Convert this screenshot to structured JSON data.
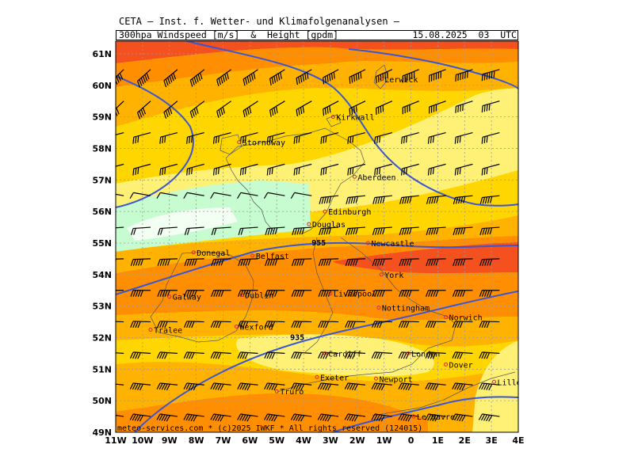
{
  "header": {
    "title": "CETA — Inst. f. Wetter- und Klimafolgenanalysen —",
    "parameter_prefix": "300hpa Windspeed",
    "unit_speed": "m/s",
    "amp": "&",
    "parameter_height": "Height",
    "unit_height": "gpdm",
    "valid_time": "15.08.2025  03  UTC"
  },
  "footer": {
    "credit": "meteo-services.com * (c)2025 IWKF * All rights reserved (124015)"
  },
  "map": {
    "lon_range": [
      -11,
      4
    ],
    "lat_range": [
      49,
      61.4
    ],
    "lon_ticks": [
      "11W",
      "10W",
      "9W",
      "8W",
      "7W",
      "6W",
      "5W",
      "4W",
      "3W",
      "2W",
      "1W",
      "0",
      "1E",
      "2E",
      "3E",
      "4E"
    ],
    "lat_ticks": [
      "49N",
      "50N",
      "51N",
      "52N",
      "53N",
      "54N",
      "55N",
      "56N",
      "57N",
      "58N",
      "59N",
      "60N",
      "61N"
    ],
    "grid": true,
    "colors": {
      "band_light": "#fff176",
      "band_yellow": "#ffd600",
      "band_gold": "#ffb300",
      "band_orange": "#ff8f00",
      "band_dark": "#f4511e",
      "band_calm_green": "#c6fccf",
      "band_calm_white": "#f2fff2",
      "contour": "#3a56d4",
      "grid_line": "#9a9a9a"
    },
    "contour_labels": [
      {
        "text": "955",
        "lon": -3.7,
        "lat": 55.0
      },
      {
        "text": "935",
        "lon": -4.5,
        "lat": 52.0
      }
    ],
    "cities": [
      {
        "name": "Lerwick",
        "lon": -1.1,
        "lat": 60.2
      },
      {
        "name": "Kirkwall",
        "lon": -2.9,
        "lat": 59.0
      },
      {
        "name": "Stornoway",
        "lon": -6.4,
        "lat": 58.2
      },
      {
        "name": "Aberdeen",
        "lon": -2.1,
        "lat": 57.1
      },
      {
        "name": "Edinburgh",
        "lon": -3.2,
        "lat": 56.0
      },
      {
        "name": "Douglas",
        "lon": -3.8,
        "lat": 55.6
      },
      {
        "name": "Newcastle",
        "lon": -1.6,
        "lat": 55.0
      },
      {
        "name": "Donegal",
        "lon": -8.1,
        "lat": 54.7
      },
      {
        "name": "Belfast",
        "lon": -5.9,
        "lat": 54.6
      },
      {
        "name": "York",
        "lon": -1.1,
        "lat": 54.0
      },
      {
        "name": "Liverpool",
        "lon": -3.0,
        "lat": 53.4
      },
      {
        "name": "Galway",
        "lon": -9.0,
        "lat": 53.3
      },
      {
        "name": "Dublin",
        "lon": -6.3,
        "lat": 53.35
      },
      {
        "name": "Nottingham",
        "lon": -1.2,
        "lat": 52.95
      },
      {
        "name": "Wexford",
        "lon": -6.5,
        "lat": 52.35
      },
      {
        "name": "Norwich",
        "lon": 1.3,
        "lat": 52.65
      },
      {
        "name": "Tralee",
        "lon": -9.7,
        "lat": 52.25
      },
      {
        "name": "Cardiff",
        "lon": -3.2,
        "lat": 51.5
      },
      {
        "name": "London",
        "lon": -0.1,
        "lat": 51.5
      },
      {
        "name": "Dover",
        "lon": 1.3,
        "lat": 51.15
      },
      {
        "name": "Exeter",
        "lon": -3.5,
        "lat": 50.75
      },
      {
        "name": "Newport",
        "lon": -1.3,
        "lat": 50.7
      },
      {
        "name": "Truro",
        "lon": -5.0,
        "lat": 50.3
      },
      {
        "name": "Lille",
        "lon": 3.1,
        "lat": 50.6
      },
      {
        "name": "Le Havre",
        "lon": 0.1,
        "lat": 49.5
      }
    ]
  }
}
